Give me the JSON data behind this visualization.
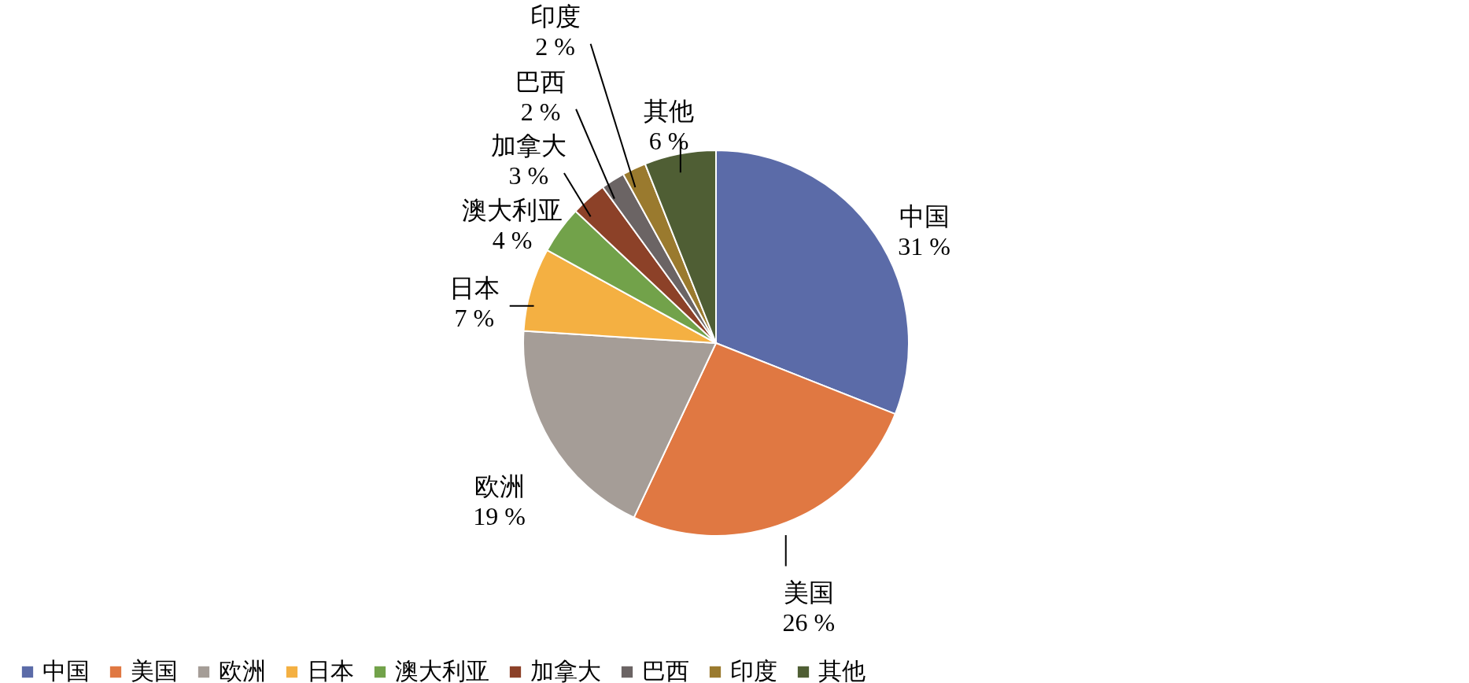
{
  "chart_data": {
    "type": "pie",
    "categories": [
      "中国",
      "美国",
      "欧洲",
      "日本",
      "澳大利亚",
      "加拿大",
      "巴西",
      "印度",
      "其他"
    ],
    "values": [
      31,
      26,
      19,
      7,
      4,
      3,
      2,
      2,
      6
    ],
    "value_labels": [
      "31 %",
      "26 %",
      "19 %",
      "7 %",
      "4 %",
      "3 %",
      "2 %",
      "2 %",
      "6 %"
    ],
    "colors": [
      "#5b6ba8",
      "#e07842",
      "#a59d97",
      "#f4b042",
      "#72a24a",
      "#8c4128",
      "#6b6464",
      "#9a7a2e",
      "#4f5e34"
    ],
    "legend": "bottom"
  }
}
